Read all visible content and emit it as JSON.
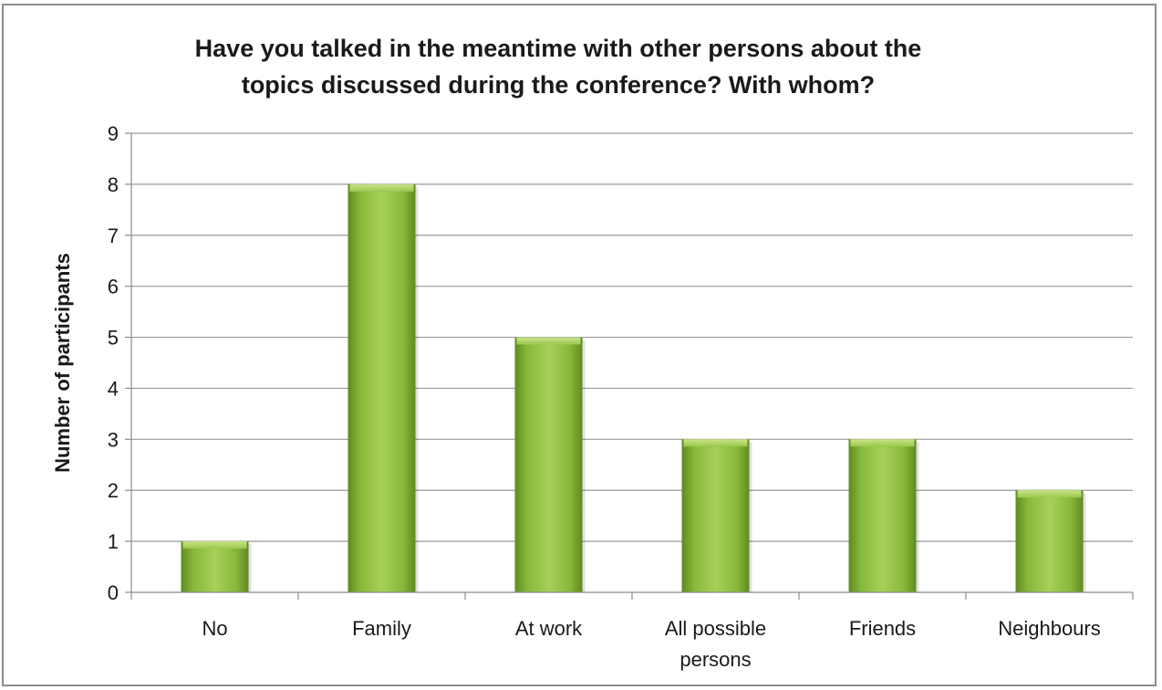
{
  "chart_data": {
    "type": "bar",
    "title_lines": [
      "Have you talked in the meantime with other persons about the",
      "topics discussed during the conference? With whom?"
    ],
    "xlabel": "",
    "ylabel": "Number of participants",
    "ylim": [
      0,
      9
    ],
    "yticks": [
      "0",
      "1",
      "2",
      "3",
      "4",
      "5",
      "6",
      "7",
      "8",
      "9"
    ],
    "categories": [
      [
        "No"
      ],
      [
        "Family"
      ],
      [
        "At work"
      ],
      [
        "All possible",
        "persons"
      ],
      [
        "Friends"
      ],
      [
        "Neighbours"
      ]
    ],
    "values": [
      1,
      8,
      5,
      3,
      3,
      2
    ],
    "grid": true,
    "legend": "none",
    "bar_color": "#8cbf3f"
  }
}
